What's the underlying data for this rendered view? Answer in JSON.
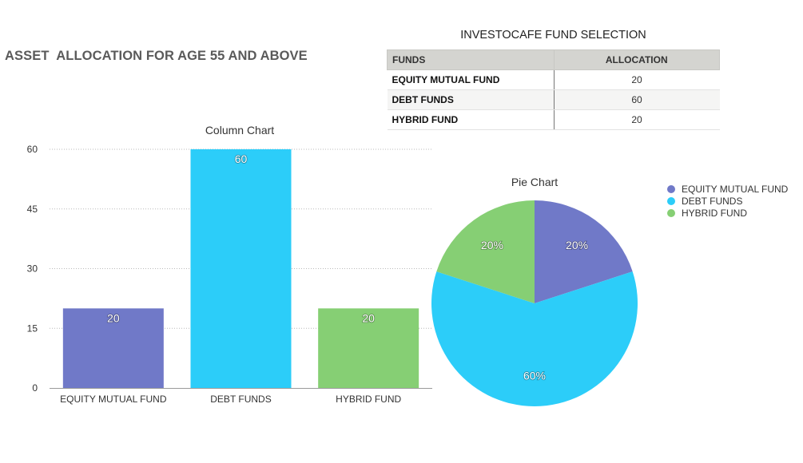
{
  "page_title": "ASSET  ALLOCATION FOR AGE 55 AND ABOVE",
  "table": {
    "title": "INVESTOCAFE FUND SELECTION",
    "headers": [
      "FUNDS",
      "ALLOCATION"
    ],
    "rows": [
      {
        "fund": "EQUITY MUTUAL FUND",
        "allocation": "20"
      },
      {
        "fund": "DEBT FUNDS",
        "allocation": "60"
      },
      {
        "fund": "HYBRID FUND",
        "allocation": "20"
      }
    ]
  },
  "colors": {
    "equity": "#7079c8",
    "debt": "#2ccdf9",
    "hybrid": "#86cf74"
  },
  "chart_data": [
    {
      "type": "bar",
      "title": "Column Chart",
      "categories": [
        "EQUITY MUTUAL FUND",
        "DEBT FUNDS",
        "HYBRID FUND"
      ],
      "values": [
        20,
        60,
        20
      ],
      "data_labels": [
        "20",
        "60",
        "20"
      ],
      "ylim": [
        0,
        60
      ],
      "yticks": [
        "0",
        "15",
        "30",
        "45",
        "60"
      ],
      "xlabel": "",
      "ylabel": "",
      "grid": true
    },
    {
      "type": "pie",
      "title": "Pie Chart",
      "labels": [
        "EQUITY MUTUAL FUND",
        "DEBT FUNDS",
        "HYBRID FUND"
      ],
      "values": [
        20,
        60,
        20
      ],
      "data_labels": [
        "20%",
        "60%",
        "20%"
      ],
      "legend": "right"
    }
  ]
}
